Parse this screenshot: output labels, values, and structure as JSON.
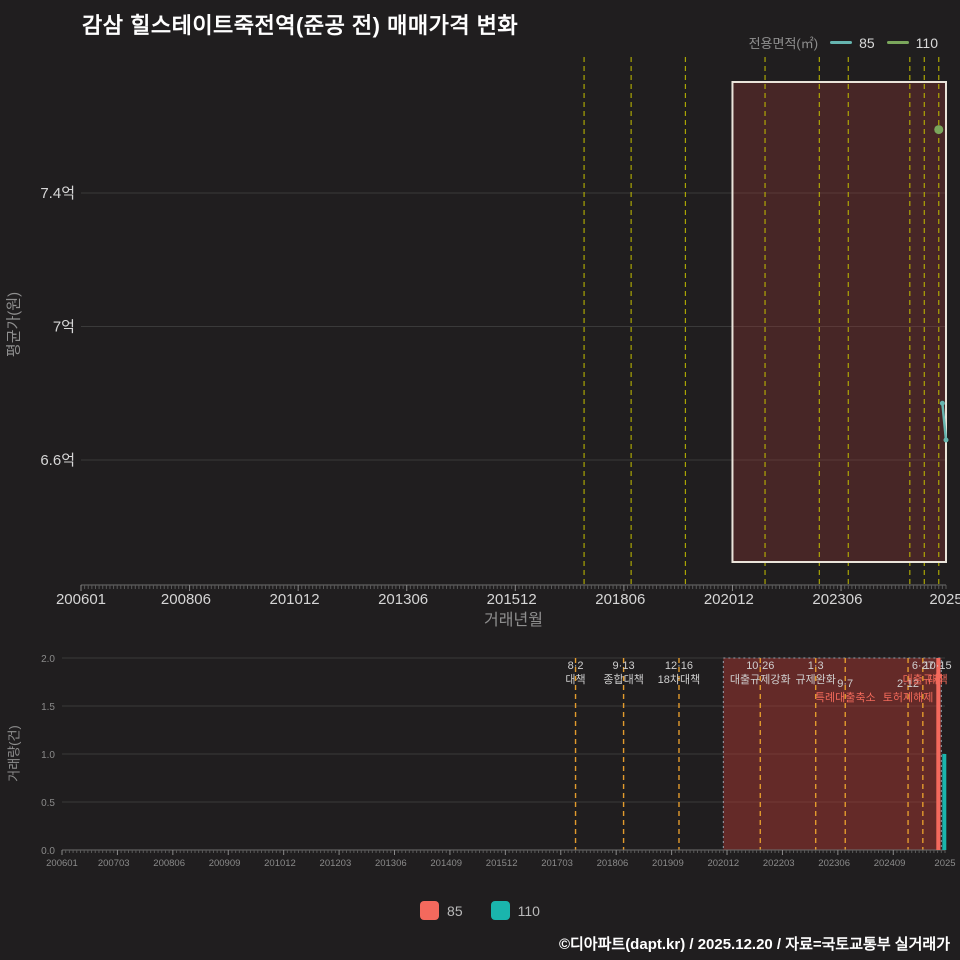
{
  "title": "감삼 힐스테이트죽전역(준공 전) 매매가격 변화",
  "legend_top": {
    "label": "전용면적(㎡)",
    "series": [
      {
        "name": "85",
        "color": "#66b5b0"
      },
      {
        "name": "110",
        "color": "#7ba75c"
      }
    ]
  },
  "legend_bottom": {
    "items": [
      {
        "name": "85",
        "color": "#f4695d"
      },
      {
        "name": "110",
        "color": "#1ab5ad"
      }
    ]
  },
  "footer": "©디아파트(dapt.kr) / 2025.12.20 / 자료=국토교통부 실거래가",
  "chart_data": [
    {
      "type": "line",
      "name": "매매가격(평균가) 추이",
      "ylabel": "평균가(원)",
      "xlabel": "거래년월",
      "x_range": [
        "200601",
        "202512"
      ],
      "ylim": [
        6.3,
        7.8
      ],
      "grid": true,
      "legend_position": "top-right",
      "y_ticks": [
        {
          "label": "7.4억",
          "value": 7.4
        },
        {
          "label": "7억",
          "value": 7.0
        },
        {
          "label": "6.6억",
          "value": 6.6
        }
      ],
      "x_ticks": [
        {
          "label": "200601",
          "month": "200601"
        },
        {
          "label": "200806",
          "month": "200806"
        },
        {
          "label": "201012",
          "month": "201012"
        },
        {
          "label": "201306",
          "month": "201306"
        },
        {
          "label": "201512",
          "month": "201512"
        },
        {
          "label": "201806",
          "month": "201806"
        },
        {
          "label": "202012",
          "month": "202012"
        },
        {
          "label": "202306",
          "month": "202306"
        },
        {
          "label": "2025",
          "month": "202512"
        }
      ],
      "series": [
        {
          "name": "85",
          "color": "#66b5b0",
          "points": [
            {
              "x": "202511",
              "y": 6.77
            },
            {
              "x": "202512",
              "y": 6.66
            }
          ]
        },
        {
          "name": "110",
          "color": "#7ba75c",
          "points": [
            {
              "x": "202510",
              "y": 7.59
            }
          ]
        }
      ],
      "highlight": {
        "from": "202101",
        "to": "202512"
      }
    },
    {
      "type": "bar",
      "name": "거래량",
      "ylabel": "거래량(건)",
      "x_range": [
        "200601",
        "202512"
      ],
      "ylim": [
        0,
        2
      ],
      "grid": true,
      "y_ticks": [
        {
          "label": "2.0",
          "value": 2.0
        },
        {
          "label": "1.5",
          "value": 1.5
        },
        {
          "label": "1.0",
          "value": 1.0
        },
        {
          "label": "0.5",
          "value": 0.5
        },
        {
          "label": "0.0",
          "value": 0.0
        }
      ],
      "x_ticks": [
        {
          "label": "200601",
          "month": "200601"
        },
        {
          "label": "200703",
          "month": "200703"
        },
        {
          "label": "200806",
          "month": "200806"
        },
        {
          "label": "200909",
          "month": "200909"
        },
        {
          "label": "201012",
          "month": "201012"
        },
        {
          "label": "201203",
          "month": "201203"
        },
        {
          "label": "201306",
          "month": "201306"
        },
        {
          "label": "201409",
          "month": "201409"
        },
        {
          "label": "201512",
          "month": "201512"
        },
        {
          "label": "201703",
          "month": "201703"
        },
        {
          "label": "201806",
          "month": "201806"
        },
        {
          "label": "201909",
          "month": "201909"
        },
        {
          "label": "202012",
          "month": "202012"
        },
        {
          "label": "202203",
          "month": "202203"
        },
        {
          "label": "202306",
          "month": "202306"
        },
        {
          "label": "202409",
          "month": "202409"
        },
        {
          "label": "2025",
          "month": "202512"
        }
      ],
      "series": [
        {
          "name": "85",
          "color": "#f4695d",
          "points": [
            {
              "x": "202511",
              "y": 2
            }
          ]
        },
        {
          "name": "110",
          "color": "#1ab5ad",
          "points": [
            {
              "x": "202511",
              "y": 1
            }
          ]
        }
      ],
      "highlight": {
        "from": "202012",
        "to": "202511"
      },
      "annotations": [
        {
          "month": "201708",
          "date": "8·2",
          "label": "대책",
          "row": 0,
          "color": "light"
        },
        {
          "month": "201809",
          "date": "9·13",
          "label": "종합대책",
          "row": 0,
          "color": "light"
        },
        {
          "month": "201912",
          "date": "12·16",
          "label": "18차대책",
          "row": 0,
          "color": "light"
        },
        {
          "month": "202110",
          "date": "10·26",
          "label": "대출규제강화",
          "row": 0,
          "color": "light"
        },
        {
          "month": "202301",
          "date": "1·3",
          "label": "규제완화",
          "row": 0,
          "color": "light"
        },
        {
          "month": "202309",
          "date": "9·7",
          "label": "특례대출축소",
          "row": 1,
          "color": "red"
        },
        {
          "month": "202502",
          "date": "2·12",
          "label": "토허제해제",
          "row": 1,
          "color": "red"
        },
        {
          "month": "202506",
          "date": "6·27",
          "label": "대출규제",
          "row": 0,
          "color": "red"
        },
        {
          "month": "202510",
          "date": "10·15",
          "label": "대책",
          "row": 0,
          "color": "red"
        }
      ]
    }
  ]
}
